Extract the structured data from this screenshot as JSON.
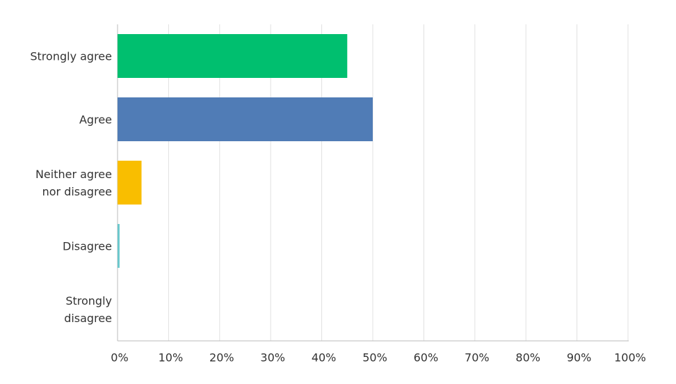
{
  "chart_data": {
    "type": "bar",
    "orientation": "horizontal",
    "categories": [
      "Strongly agree",
      "Agree",
      "Neither agree nor disagree",
      "Disagree",
      "Strongly disagree"
    ],
    "values": [
      45,
      50,
      4.7,
      0.4,
      0
    ],
    "colors": [
      "#00bf6f",
      "#507cb6",
      "#f9be00",
      "#6bc8cd",
      "#ff8b4f"
    ],
    "xlim": [
      0,
      100
    ],
    "xticks": [
      {
        "value": 0,
        "label": "0%"
      },
      {
        "value": 10,
        "label": "10%"
      },
      {
        "value": 20,
        "label": "20%"
      },
      {
        "value": 30,
        "label": "30%"
      },
      {
        "value": 40,
        "label": "40%"
      },
      {
        "value": 50,
        "label": "50%"
      },
      {
        "value": 60,
        "label": "60%"
      },
      {
        "value": 70,
        "label": "70%"
      },
      {
        "value": 80,
        "label": "80%"
      },
      {
        "value": 90,
        "label": "90%"
      },
      {
        "value": 100,
        "label": "100%"
      }
    ],
    "grid": true
  }
}
